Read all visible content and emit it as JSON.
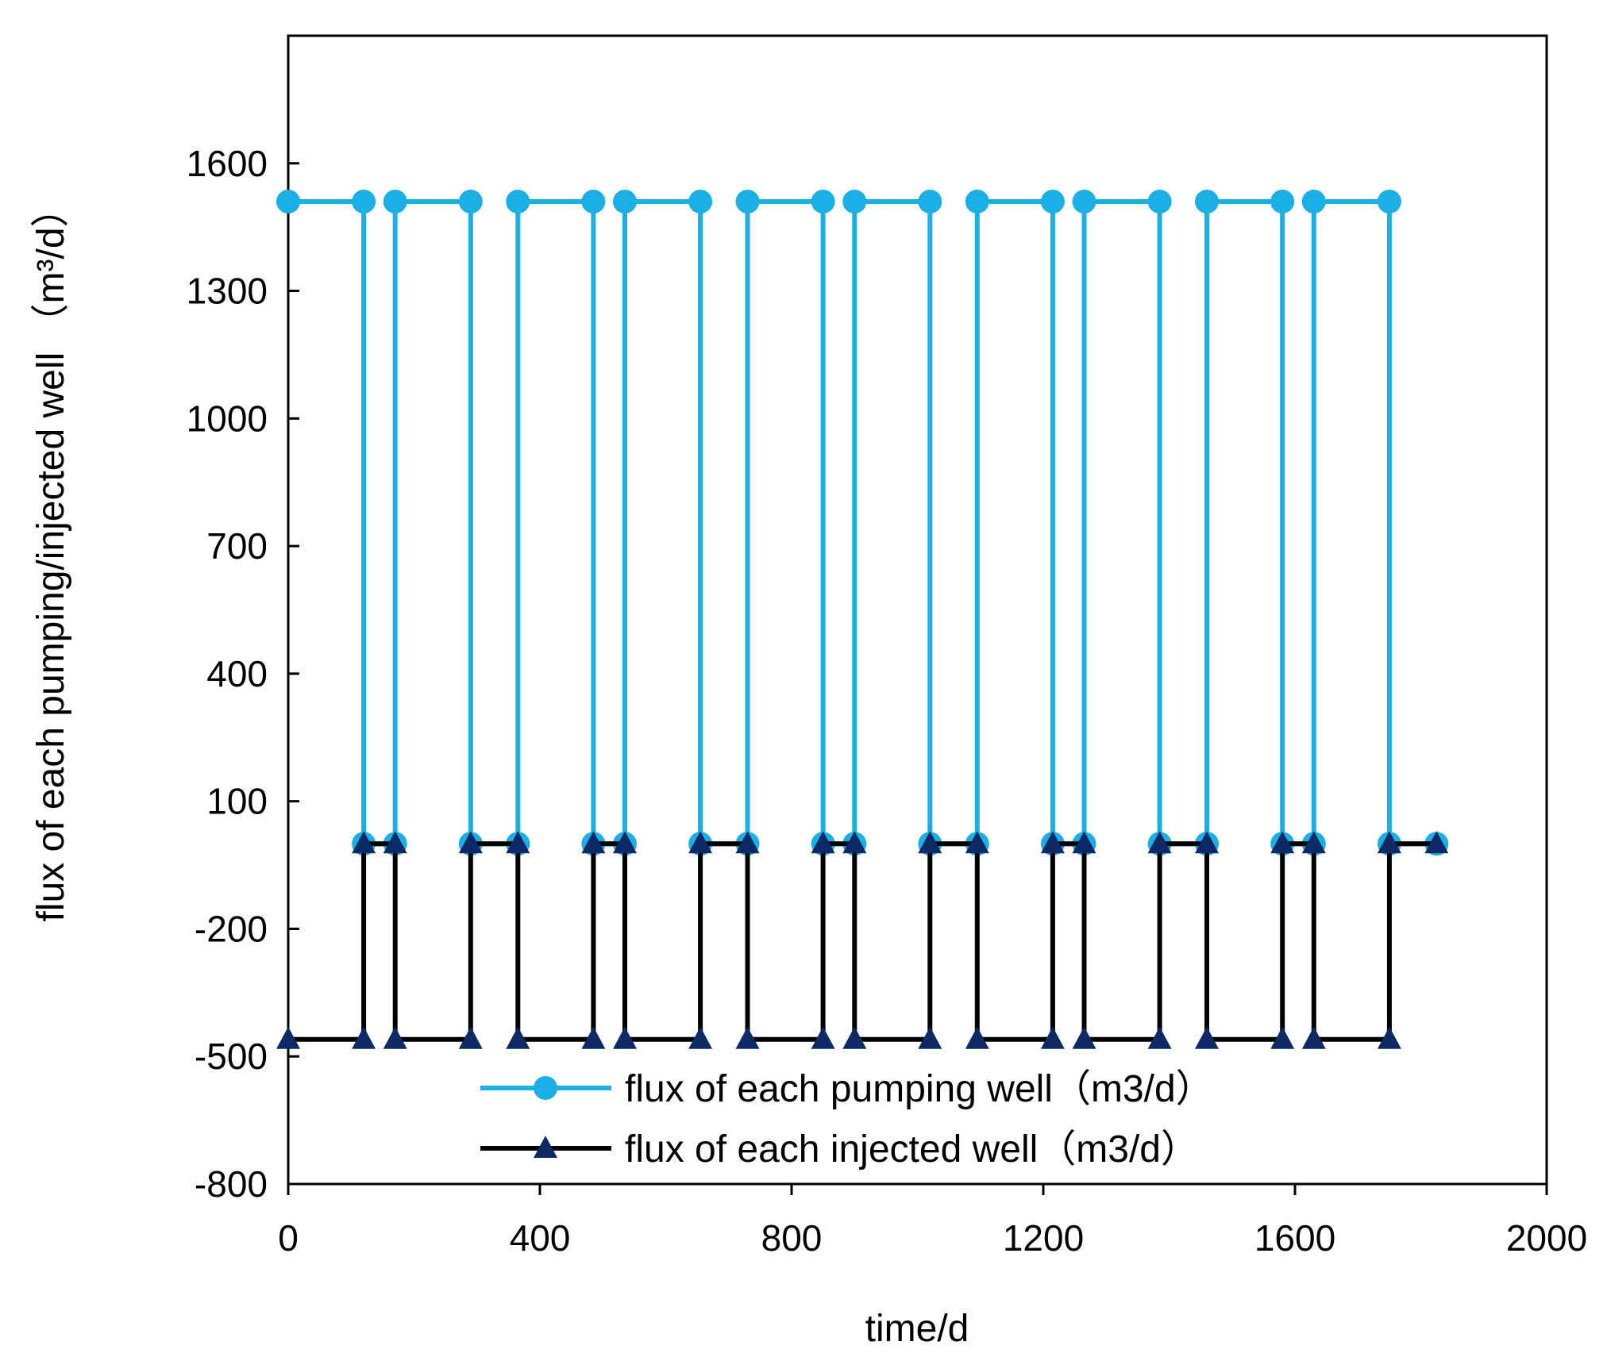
{
  "chart_data": {
    "type": "line",
    "title": "",
    "xlabel": "time/d",
    "ylabel": "flux of each pumping/injected well （m³/d）",
    "xlim": [
      0,
      2000
    ],
    "ylim": [
      -800,
      1900
    ],
    "xticks": [
      0,
      400,
      800,
      1200,
      1600,
      2000
    ],
    "yticks": [
      -800,
      -500,
      -200,
      100,
      400,
      700,
      1000,
      1300,
      1600
    ],
    "grid": false,
    "legend_position": "bottom-center",
    "series": [
      {
        "name": "flux of each pumping well（m3/d）",
        "color": "#1ab0e6",
        "marker": "circle",
        "x": [
          0,
          120,
          120,
          170,
          170,
          290,
          290,
          365,
          365,
          485,
          485,
          535,
          535,
          655,
          655,
          730,
          730,
          850,
          850,
          900,
          900,
          1020,
          1020,
          1095,
          1095,
          1215,
          1215,
          1265,
          1265,
          1385,
          1385,
          1460,
          1460,
          1580,
          1580,
          1630,
          1630,
          1750,
          1750,
          1825
        ],
        "y": [
          1510,
          1510,
          0,
          0,
          1510,
          1510,
          0,
          0,
          1510,
          1510,
          0,
          0,
          1510,
          1510,
          0,
          0,
          1510,
          1510,
          0,
          0,
          1510,
          1510,
          0,
          0,
          1510,
          1510,
          0,
          0,
          1510,
          1510,
          0,
          0,
          1510,
          1510,
          0,
          0,
          1510,
          1510,
          0,
          0
        ]
      },
      {
        "name": "flux of each injected well（m3/d）",
        "color": "#000000",
        "marker_color": "#0d2a66",
        "marker": "triangle",
        "x": [
          0,
          120,
          120,
          170,
          170,
          290,
          290,
          365,
          365,
          485,
          485,
          535,
          535,
          655,
          655,
          730,
          730,
          850,
          850,
          900,
          900,
          1020,
          1020,
          1095,
          1095,
          1215,
          1215,
          1265,
          1265,
          1385,
          1385,
          1460,
          1460,
          1580,
          1580,
          1630,
          1630,
          1750,
          1750,
          1825
        ],
        "y": [
          -460,
          -460,
          0,
          0,
          -460,
          -460,
          0,
          0,
          -460,
          -460,
          0,
          0,
          -460,
          -460,
          0,
          0,
          -460,
          -460,
          0,
          0,
          -460,
          -460,
          0,
          0,
          -460,
          -460,
          0,
          0,
          -460,
          -460,
          0,
          0,
          -460,
          -460,
          0,
          0,
          -460,
          -460,
          0,
          0
        ]
      }
    ]
  }
}
